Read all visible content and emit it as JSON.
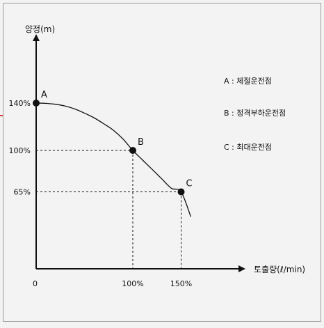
{
  "colors": {
    "background": "#f3f3f3",
    "border": "#9a9a9a",
    "ink": "#111111",
    "edge_mark": "#cc0000"
  },
  "chart_data": {
    "type": "line",
    "title": "",
    "ylabel": "양정(m)",
    "xlabel": "토출량(ℓ/min)",
    "origin_label": "0",
    "xlim": [
      0,
      170
    ],
    "ylim": [
      0,
      190
    ],
    "x_ticks": [
      {
        "value": 100,
        "label": "100%"
      },
      {
        "value": 150,
        "label": "150%"
      }
    ],
    "y_ticks": [
      {
        "value": 140,
        "label": "140%"
      },
      {
        "value": 100,
        "label": "100%"
      },
      {
        "value": 65,
        "label": "65%"
      }
    ],
    "curve": {
      "x": [
        0,
        10,
        20,
        30,
        40,
        50,
        60,
        70,
        80,
        90,
        100,
        110,
        120,
        130,
        140,
        150,
        160
      ],
      "y": [
        140,
        139.8,
        139,
        137.5,
        135,
        131.5,
        127.5,
        122.5,
        117,
        109.5,
        100,
        92,
        84,
        76,
        68,
        65,
        44
      ]
    },
    "points": [
      {
        "label": "A",
        "x": 0,
        "y": 140
      },
      {
        "label": "B",
        "x": 100,
        "y": 100
      },
      {
        "label": "C",
        "x": 150,
        "y": 65
      }
    ],
    "legend": [
      "A : 체절운전점",
      "B : 정격부하운전점",
      "C : 최대운전점"
    ],
    "grid": false,
    "legend_position": "right"
  }
}
